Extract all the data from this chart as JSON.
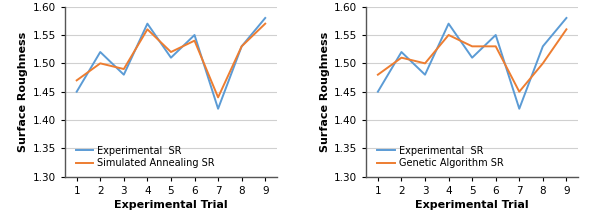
{
  "trials": [
    1,
    2,
    3,
    4,
    5,
    6,
    7,
    8,
    9
  ],
  "experimental_sr": [
    1.45,
    1.52,
    1.48,
    1.57,
    1.51,
    1.55,
    1.42,
    1.53,
    1.58
  ],
  "simulated_annealing_sr": [
    1.47,
    1.5,
    1.49,
    1.56,
    1.52,
    1.54,
    1.44,
    1.53,
    1.57
  ],
  "genetic_algorithm_sr": [
    1.48,
    1.51,
    1.5,
    1.55,
    1.53,
    1.53,
    1.45,
    1.5,
    1.56
  ],
  "color_experimental": "#5B9BD5",
  "color_sa": "#ED7D31",
  "color_ga": "#ED7D31",
  "ylim": [
    1.3,
    1.6
  ],
  "yticks": [
    1.3,
    1.35,
    1.4,
    1.45,
    1.5,
    1.55,
    1.6
  ],
  "xlabel": "Experimental Trial",
  "ylabel": "Surface Roughness",
  "legend1": [
    "Experimental  SR",
    "Simulated Annealing SR"
  ],
  "legend2": [
    "Experimental  SR",
    "Genetic Algorithm SR"
  ],
  "linewidth": 1.4,
  "bg_color": "#FFFFFF",
  "grid_color": "#D0D0D0"
}
